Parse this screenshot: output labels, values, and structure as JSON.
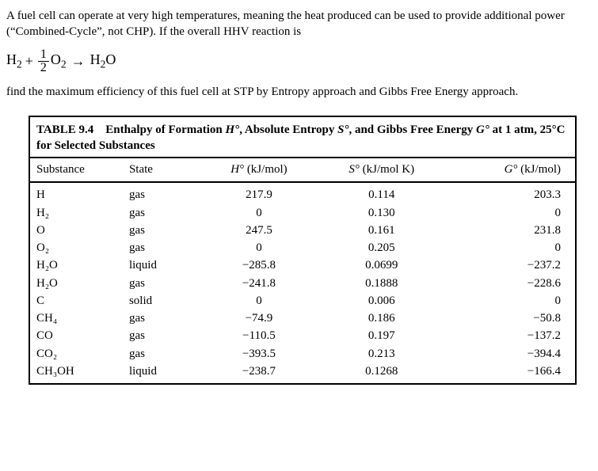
{
  "para1": "A fuel cell can operate at very high temperatures, meaning the heat produced can be used to provide additional power (“Combined-Cycle”, not CHP). If the overall HHV reaction is",
  "para2": "find the maximum efficiency of this fuel cell at STP by Entropy approach and Gibbs Free Energy approach.",
  "equation": {
    "lhs1": "H",
    "lhs1sub": "2",
    "plus": "+",
    "frac_num": "1",
    "frac_den": "2",
    "lhs2": "O",
    "lhs2sub": "2",
    "arrow": "→",
    "rhs": "H",
    "rhs_sub": "2",
    "rhs2": "O"
  },
  "table": {
    "title_strong": "TABLE 9.4",
    "title_rest1": "Enthalpy of Formation ",
    "title_sym1": "H°",
    "title_rest2": ", Absolute Entropy ",
    "title_sym2": "S°",
    "title_rest3": ", and Gibbs Free Energy ",
    "title_sym3": "G°",
    "title_rest4": " at 1 atm, 25°C for Selected Substances",
    "headers": {
      "c1": "Substance",
      "c2": "State",
      "c3a": "H°",
      "c3b": " (kJ/mol)",
      "c4a": "S°",
      "c4b": " (kJ/mol K)",
      "c5a": "G°",
      "c5b": " (kJ/mol)"
    },
    "rows": [
      {
        "s": "H",
        "st": "gas",
        "h": "217.9",
        "e": "0.114",
        "g": "203.3"
      },
      {
        "s": "H₂",
        "st": "gas",
        "h": "0",
        "e": "0.130",
        "g": "0"
      },
      {
        "s": "O",
        "st": "gas",
        "h": "247.5",
        "e": "0.161",
        "g": "231.8"
      },
      {
        "s": "O₂",
        "st": "gas",
        "h": "0",
        "e": "0.205",
        "g": "0"
      },
      {
        "s": "H₂O",
        "st": "liquid",
        "h": "−285.8",
        "e": "0.0699",
        "g": "−237.2"
      },
      {
        "s": "H₂O",
        "st": "gas",
        "h": "−241.8",
        "e": "0.1888",
        "g": "−228.6"
      },
      {
        "s": "C",
        "st": "solid",
        "h": "0",
        "e": "0.006",
        "g": "0"
      },
      {
        "s": "CH₄",
        "st": "gas",
        "h": "−74.9",
        "e": "0.186",
        "g": "−50.8"
      },
      {
        "s": "CO",
        "st": "gas",
        "h": "−110.5",
        "e": "0.197",
        "g": "−137.2"
      },
      {
        "s": "CO₂",
        "st": "gas",
        "h": "−393.5",
        "e": "0.213",
        "g": "−394.4"
      },
      {
        "s": "CH₃OH",
        "st": "liquid",
        "h": "−238.7",
        "e": "0.1268",
        "g": "−166.4"
      }
    ]
  }
}
